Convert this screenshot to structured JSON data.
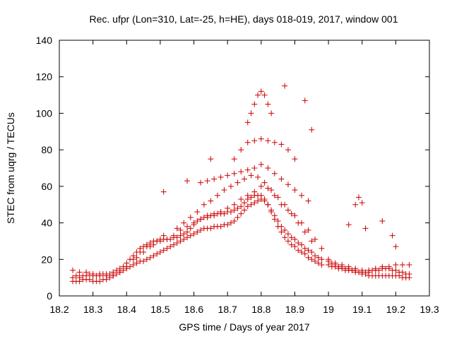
{
  "chart_data": {
    "type": "scatter",
    "title": "Rec. ufpr (Lon=310, Lat=-25, h=HE), days 018-019, 2017, window 001",
    "xlabel": "GPS time / Days of year 2017",
    "ylabel": "STEC from uqrg / TECUs",
    "xlim": [
      18.2,
      19.3
    ],
    "ylim": [
      0,
      140
    ],
    "xticks": [
      18.2,
      18.3,
      18.4,
      18.5,
      18.6,
      18.7,
      18.8,
      18.9,
      19,
      19.1,
      19.2,
      19.3
    ],
    "yticks": [
      0,
      20,
      40,
      60,
      80,
      100,
      120,
      140
    ],
    "xtick_labels": [
      "18.2",
      "18.3",
      "18.4",
      "18.5",
      "18.6",
      "18.7",
      "18.8",
      "18.9",
      "19",
      "19.1",
      "19.2",
      "19.3"
    ],
    "ytick_labels": [
      "0",
      "20",
      "40",
      "60",
      "80",
      "100",
      "120",
      "140"
    ],
    "grid": false,
    "marker": "plus",
    "color": "#cc0000",
    "series": [
      {
        "x": [
          18.24,
          18.25,
          18.26,
          18.27,
          18.28,
          18.29,
          18.3,
          18.31,
          18.32,
          18.33,
          18.34,
          18.35,
          18.36,
          18.37,
          18.38,
          18.39,
          18.4,
          18.41,
          18.42,
          18.43,
          18.44,
          18.45,
          18.46,
          18.47,
          18.48,
          18.49,
          18.5,
          18.51,
          18.52,
          18.53,
          18.54,
          18.55,
          18.56,
          18.57,
          18.58,
          18.59,
          18.6,
          18.61,
          18.62,
          18.63,
          18.64,
          18.65,
          18.66,
          18.67,
          18.68,
          18.69,
          18.7,
          18.71,
          18.72,
          18.73,
          18.74,
          18.75,
          18.76,
          18.77,
          18.78,
          18.79,
          18.8,
          18.81,
          18.82,
          18.83,
          18.84,
          18.85,
          18.86,
          18.87,
          18.88,
          18.89,
          18.9,
          18.91,
          18.92,
          18.93,
          18.94,
          18.95,
          18.96,
          18.97,
          18.98,
          19.0,
          19.01,
          19.02,
          19.03,
          19.04,
          19.05,
          19.06,
          19.07,
          19.08,
          19.09,
          19.1,
          19.11,
          19.12,
          19.13,
          19.14,
          19.15,
          19.16,
          19.17,
          19.18,
          19.19,
          19.2,
          19.21,
          19.22,
          19.23,
          19.24,
          18.24,
          18.25,
          18.26,
          18.27,
          18.28,
          18.29,
          18.3,
          18.31,
          18.32,
          18.33,
          18.34,
          18.35,
          18.36,
          18.37,
          18.38,
          18.39,
          18.4,
          18.41,
          18.42,
          18.43,
          18.44,
          18.45,
          18.46,
          18.47,
          18.48,
          18.49,
          18.5,
          18.51,
          18.52,
          18.53,
          18.54,
          18.55,
          18.56,
          18.57,
          18.58,
          18.59,
          18.6,
          18.61,
          18.62,
          18.63,
          18.64,
          18.65,
          18.66,
          18.67,
          18.68,
          18.69,
          18.7,
          18.71,
          18.72,
          18.73,
          18.74,
          18.75,
          18.76,
          18.77,
          18.78,
          18.79,
          18.8,
          18.81,
          18.82,
          18.83,
          18.84,
          18.85,
          18.86,
          18.87,
          18.88,
          18.89,
          18.9,
          18.91,
          18.92,
          18.93,
          18.94,
          18.95,
          18.96,
          18.97,
          18.98,
          19.0,
          19.01,
          19.02,
          19.03,
          19.04,
          19.05,
          19.06,
          19.07,
          19.08,
          19.09,
          19.1,
          19.11,
          19.12,
          19.13,
          19.14,
          19.15,
          19.16,
          19.17,
          19.18,
          19.19,
          19.2,
          19.21,
          19.22,
          19.23,
          19.24,
          18.24,
          18.26,
          18.28,
          18.3,
          18.32,
          18.34,
          18.36,
          18.38,
          18.4,
          18.42,
          18.44,
          18.46,
          18.48,
          18.5,
          18.52,
          18.54,
          18.56,
          18.58,
          18.6,
          18.62,
          18.64,
          18.66,
          18.68,
          18.7,
          18.72,
          18.74,
          18.76,
          18.78,
          18.8,
          18.82,
          18.84,
          18.86,
          18.88,
          18.9,
          18.92,
          18.94,
          18.96,
          18.98,
          19.0,
          19.02,
          19.04,
          19.06,
          19.08,
          19.1,
          19.12,
          19.14,
          19.16,
          19.18,
          19.2,
          19.22,
          19.24,
          18.43,
          18.45,
          18.47,
          18.49,
          18.51,
          18.55,
          18.57,
          18.59,
          18.61,
          18.63,
          18.65,
          18.67,
          18.69,
          18.71,
          18.73,
          18.75,
          18.77,
          18.79,
          18.81,
          18.83,
          18.85,
          18.87,
          18.89,
          18.91,
          18.93,
          18.95,
          18.62,
          18.64,
          18.66,
          18.68,
          18.7,
          18.72,
          18.74,
          18.76,
          18.78,
          18.8,
          18.82,
          18.84,
          18.86,
          18.88,
          18.9,
          18.92,
          18.94,
          18.72,
          18.74,
          18.76,
          18.78,
          18.8,
          18.82,
          18.84,
          18.86,
          18.88,
          18.9,
          18.76,
          18.77,
          18.78,
          18.79,
          18.8,
          18.81,
          18.82,
          18.83,
          18.51,
          18.58,
          18.65,
          18.87,
          18.93,
          18.95,
          19.06,
          19.08,
          19.09,
          19.1,
          19.11,
          19.16,
          19.19,
          19.2
        ],
        "y": [
          10,
          11,
          10,
          11,
          11,
          12,
          11,
          11,
          11,
          12,
          12,
          12,
          13,
          14,
          15,
          16,
          18,
          20,
          22,
          24,
          26,
          27,
          28,
          29,
          30,
          30,
          31,
          31,
          31,
          31,
          32,
          32,
          33,
          34,
          35,
          37,
          39,
          41,
          42,
          43,
          44,
          44,
          44,
          45,
          45,
          45,
          46,
          46,
          47,
          48,
          49,
          51,
          53,
          54,
          55,
          55,
          55,
          53,
          50,
          46,
          42,
          38,
          35,
          32,
          30,
          28,
          27,
          25,
          24,
          23,
          21,
          20,
          19,
          18,
          17,
          17,
          16,
          16,
          15,
          15,
          14,
          14,
          14,
          13,
          13,
          13,
          13,
          13,
          14,
          14,
          14,
          15,
          15,
          15,
          14,
          14,
          13,
          13,
          12,
          12,
          8,
          8,
          8,
          9,
          9,
          9,
          8,
          8,
          8,
          9,
          9,
          10,
          11,
          12,
          13,
          14,
          15,
          16,
          17,
          18,
          19,
          19,
          20,
          21,
          22,
          23,
          24,
          25,
          26,
          27,
          28,
          29,
          30,
          31,
          32,
          33,
          34,
          35,
          36,
          37,
          37,
          37,
          38,
          38,
          38,
          39,
          39,
          40,
          41,
          43,
          45,
          47,
          49,
          50,
          51,
          52,
          53,
          52,
          50,
          47,
          44,
          41,
          38,
          36,
          34,
          32,
          31,
          29,
          28,
          26,
          25,
          24,
          22,
          21,
          20,
          19,
          18,
          17,
          16,
          16,
          15,
          15,
          14,
          14,
          13,
          12,
          12,
          11,
          11,
          11,
          11,
          11,
          11,
          11,
          11,
          11,
          11,
          10,
          10,
          10,
          14,
          13,
          13,
          12,
          12,
          11,
          11,
          13,
          16,
          20,
          24,
          27,
          28,
          30,
          31,
          33,
          36,
          38,
          40,
          42,
          43,
          45,
          46,
          48,
          50,
          53,
          55,
          57,
          60,
          59,
          55,
          50,
          47,
          44,
          40,
          36,
          31,
          26,
          20,
          18,
          17,
          16,
          15,
          14,
          14,
          15,
          16,
          16,
          17,
          17,
          17,
          21,
          24,
          27,
          30,
          33,
          37,
          40,
          43,
          46,
          50,
          52,
          55,
          58,
          60,
          62,
          64,
          66,
          65,
          62,
          58,
          54,
          50,
          45,
          40,
          35,
          30,
          62,
          63,
          64,
          65,
          66,
          67,
          68,
          69,
          70,
          72,
          70,
          67,
          64,
          61,
          58,
          55,
          52,
          75,
          80,
          84,
          85,
          86,
          85,
          84,
          83,
          80,
          75,
          95,
          100,
          105,
          110,
          112,
          110,
          105,
          100,
          57,
          63,
          75,
          115,
          107,
          91,
          39,
          50,
          54,
          51,
          37,
          41,
          33,
          27
        ]
      }
    ]
  }
}
